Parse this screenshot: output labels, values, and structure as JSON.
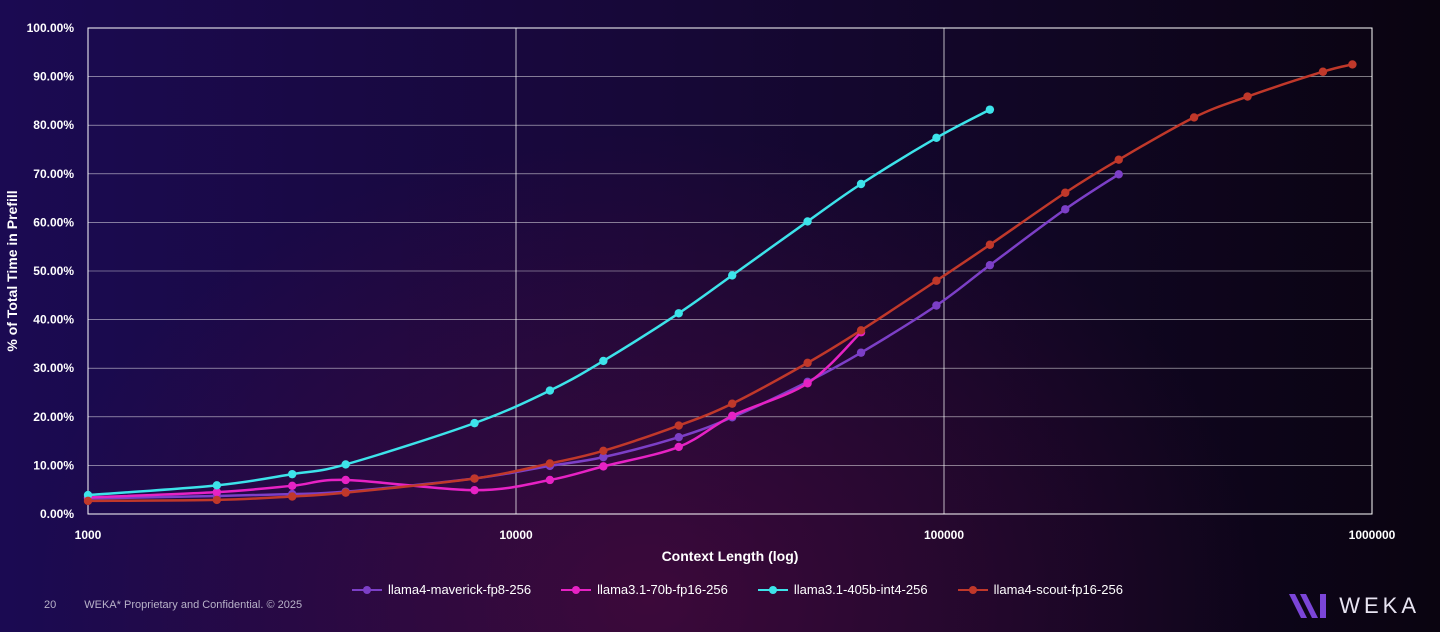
{
  "chart_data": {
    "type": "line",
    "title": "",
    "xlabel": "Context Length (log)",
    "ylabel": "% of Total Time in Prefill",
    "xscale": "log",
    "xlim": [
      1000,
      1000000
    ],
    "ylim": [
      0,
      100
    ],
    "x_tick_labels": [
      "1000",
      "10000",
      "100000",
      "1000000"
    ],
    "y_tick_labels": [
      "0.00%",
      "10.00%",
      "20.00%",
      "30.00%",
      "40.00%",
      "50.00%",
      "60.00%",
      "70.00%",
      "80.00%",
      "90.00%",
      "100.00%"
    ],
    "grid": true,
    "legend_position": "bottom",
    "series": [
      {
        "name": "llama4-maverick-fp8-256",
        "color": "#7c3fc7",
        "points": [
          [
            1000,
            3.2
          ],
          [
            2000,
            3.7
          ],
          [
            3000,
            4.1
          ],
          [
            4000,
            4.6
          ],
          [
            8000,
            7.3
          ],
          [
            12000,
            9.9
          ],
          [
            16000,
            11.7
          ],
          [
            24000,
            15.8
          ],
          [
            32000,
            19.9
          ],
          [
            48000,
            27.2
          ],
          [
            64000,
            33.2
          ],
          [
            96000,
            42.9
          ],
          [
            128000,
            51.2
          ],
          [
            192000,
            62.7
          ],
          [
            256000,
            69.9
          ]
        ]
      },
      {
        "name": "llama3.1-70b-fp16-256",
        "color": "#e622c4",
        "points": [
          [
            1000,
            3.4
          ],
          [
            2000,
            4.5
          ],
          [
            3000,
            5.8
          ],
          [
            4000,
            7.0
          ],
          [
            8000,
            4.9
          ],
          [
            12000,
            7.0
          ],
          [
            16000,
            9.8
          ],
          [
            24000,
            13.8
          ],
          [
            32000,
            20.2
          ],
          [
            48000,
            26.9
          ],
          [
            64000,
            37.4
          ]
        ]
      },
      {
        "name": "llama3.1-405b-int4-256",
        "color": "#3de3ea",
        "points": [
          [
            1000,
            3.9
          ],
          [
            2000,
            5.9
          ],
          [
            3000,
            8.2
          ],
          [
            4000,
            10.2
          ],
          [
            8000,
            18.7
          ],
          [
            12000,
            25.4
          ],
          [
            16000,
            31.5
          ],
          [
            24000,
            41.3
          ],
          [
            32000,
            49.1
          ],
          [
            48000,
            60.2
          ],
          [
            64000,
            67.9
          ],
          [
            96000,
            77.4
          ],
          [
            128000,
            83.2
          ]
        ]
      },
      {
        "name": "llama4-scout-fp16-256",
        "color": "#c0382a",
        "points": [
          [
            1000,
            2.7
          ],
          [
            2000,
            2.9
          ],
          [
            3000,
            3.6
          ],
          [
            4000,
            4.4
          ],
          [
            8000,
            7.3
          ],
          [
            12000,
            10.4
          ],
          [
            16000,
            13.0
          ],
          [
            24000,
            18.2
          ],
          [
            32000,
            22.7
          ],
          [
            48000,
            31.1
          ],
          [
            64000,
            37.8
          ],
          [
            96000,
            48.0
          ],
          [
            128000,
            55.4
          ],
          [
            192000,
            66.1
          ],
          [
            256000,
            72.9
          ],
          [
            384000,
            81.6
          ],
          [
            512000,
            85.9
          ],
          [
            768000,
            91.0
          ],
          [
            900000,
            92.5
          ]
        ]
      }
    ]
  },
  "footer": {
    "page_number": "20",
    "confidential_text": "WEKA* Proprietary and Confidential. © 2025"
  },
  "brand": {
    "name": "WEKA",
    "logo_color": "#7b45d8"
  }
}
